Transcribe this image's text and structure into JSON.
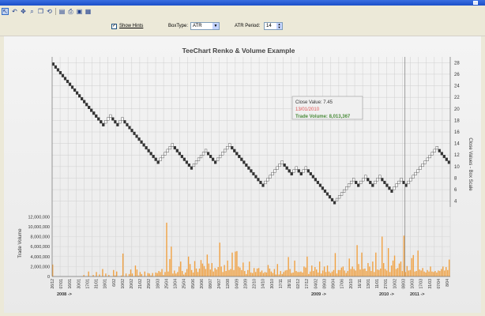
{
  "toolbar": {
    "icons": [
      "pointer-icon",
      "undo-icon",
      "move-icon",
      "zoom-icon",
      "copy-icon",
      "rotate-icon",
      "edit-icon",
      "print-icon",
      "export-icon",
      "save-icon"
    ]
  },
  "options": {
    "show_hints_label": "Show Hints",
    "show_hints_checked": true,
    "box_type_label": "BoxType:",
    "box_type_value": "ATR",
    "atr_period_label": "ATR Period:",
    "atr_period_value": "14"
  },
  "hint": {
    "close_value": "Close Value: 7.45",
    "date": "13/01/2010",
    "trade_volume": "Trade Volume: 8,013,367"
  },
  "chart_data": {
    "type": "renko_volume",
    "title": "TeeChart Renko & Volume Example",
    "renko": {
      "ylabel": "Close Values - Box Scale",
      "ylim": [
        3,
        29
      ],
      "yticks": [
        4,
        6,
        8,
        10,
        12,
        14,
        16,
        18,
        20,
        22,
        24,
        26,
        28
      ],
      "bricks": [
        [
          28,
          -1
        ],
        [
          27.5,
          -1
        ],
        [
          27,
          -1
        ],
        [
          26.5,
          -1
        ],
        [
          26,
          -1
        ],
        [
          25.5,
          -1
        ],
        [
          25,
          -1
        ],
        [
          24.5,
          -1
        ],
        [
          24,
          -1
        ],
        [
          23.5,
          -1
        ],
        [
          23,
          -1
        ],
        [
          22.5,
          -1
        ],
        [
          22,
          -1
        ],
        [
          21.5,
          -1
        ],
        [
          21,
          -1
        ],
        [
          20.5,
          -1
        ],
        [
          20,
          -1
        ],
        [
          19.5,
          -1
        ],
        [
          19,
          -1
        ],
        [
          18.5,
          -1
        ],
        [
          18,
          -1
        ],
        [
          17.5,
          -1
        ],
        [
          18,
          1
        ],
        [
          18.5,
          1
        ],
        [
          19,
          1
        ],
        [
          18.5,
          -1
        ],
        [
          18,
          -1
        ],
        [
          17.5,
          -1
        ],
        [
          18,
          1
        ],
        [
          18.5,
          1
        ],
        [
          18,
          -1
        ],
        [
          17.5,
          -1
        ],
        [
          17,
          -1
        ],
        [
          16.5,
          -1
        ],
        [
          16,
          -1
        ],
        [
          15.5,
          -1
        ],
        [
          15,
          -1
        ],
        [
          14.5,
          -1
        ],
        [
          14,
          -1
        ],
        [
          13.5,
          -1
        ],
        [
          13,
          -1
        ],
        [
          12.5,
          -1
        ],
        [
          12,
          -1
        ],
        [
          11.5,
          -1
        ],
        [
          11,
          -1
        ],
        [
          11.5,
          1
        ],
        [
          12,
          1
        ],
        [
          12.5,
          1
        ],
        [
          13,
          1
        ],
        [
          13.5,
          1
        ],
        [
          14,
          1
        ],
        [
          13.5,
          -1
        ],
        [
          13,
          -1
        ],
        [
          12.5,
          -1
        ],
        [
          12,
          -1
        ],
        [
          11.5,
          -1
        ],
        [
          11,
          -1
        ],
        [
          10.5,
          -1
        ],
        [
          10,
          -1
        ],
        [
          10.5,
          1
        ],
        [
          11,
          1
        ],
        [
          11.5,
          1
        ],
        [
          12,
          1
        ],
        [
          12.5,
          1
        ],
        [
          13,
          1
        ],
        [
          12.5,
          -1
        ],
        [
          12,
          -1
        ],
        [
          11.5,
          -1
        ],
        [
          11,
          -1
        ],
        [
          11.5,
          1
        ],
        [
          12,
          1
        ],
        [
          12.5,
          1
        ],
        [
          13,
          1
        ],
        [
          13.5,
          1
        ],
        [
          14,
          1
        ],
        [
          13.5,
          -1
        ],
        [
          13,
          -1
        ],
        [
          12.5,
          -1
        ],
        [
          12,
          -1
        ],
        [
          11.5,
          -1
        ],
        [
          11,
          -1
        ],
        [
          10.5,
          -1
        ],
        [
          10,
          -1
        ],
        [
          9.5,
          -1
        ],
        [
          9,
          -1
        ],
        [
          8.5,
          -1
        ],
        [
          8,
          -1
        ],
        [
          7.5,
          -1
        ],
        [
          7,
          -1
        ],
        [
          7.5,
          1
        ],
        [
          8,
          1
        ],
        [
          8.5,
          1
        ],
        [
          9,
          1
        ],
        [
          9.5,
          1
        ],
        [
          10,
          1
        ],
        [
          10.5,
          1
        ],
        [
          11,
          1
        ],
        [
          10.5,
          -1
        ],
        [
          10,
          -1
        ],
        [
          9.5,
          -1
        ],
        [
          9,
          -1
        ],
        [
          9.5,
          1
        ],
        [
          10,
          1
        ],
        [
          9.5,
          -1
        ],
        [
          9,
          -1
        ],
        [
          9.5,
          1
        ],
        [
          10,
          1
        ],
        [
          9.5,
          -1
        ],
        [
          9,
          -1
        ],
        [
          8.5,
          -1
        ],
        [
          8,
          -1
        ],
        [
          7.5,
          -1
        ],
        [
          7,
          -1
        ],
        [
          6.5,
          -1
        ],
        [
          6,
          -1
        ],
        [
          5.5,
          -1
        ],
        [
          5,
          -1
        ],
        [
          4.5,
          -1
        ],
        [
          4,
          -1
        ],
        [
          4.5,
          1
        ],
        [
          5,
          1
        ],
        [
          5.5,
          1
        ],
        [
          6,
          1
        ],
        [
          6.5,
          1
        ],
        [
          7,
          1
        ],
        [
          7.5,
          1
        ],
        [
          8,
          1
        ],
        [
          7.5,
          -1
        ],
        [
          7,
          -1
        ],
        [
          7.5,
          1
        ],
        [
          8,
          1
        ],
        [
          8.5,
          1
        ],
        [
          8,
          -1
        ],
        [
          7.5,
          -1
        ],
        [
          7,
          -1
        ],
        [
          7.5,
          1
        ],
        [
          8,
          1
        ],
        [
          8.5,
          1
        ],
        [
          8,
          -1
        ],
        [
          7.5,
          -1
        ],
        [
          7,
          -1
        ],
        [
          6.5,
          -1
        ],
        [
          6,
          -1
        ],
        [
          6.5,
          1
        ],
        [
          7,
          1
        ],
        [
          7.5,
          1
        ],
        [
          8,
          1
        ],
        [
          7.5,
          -1
        ],
        [
          7,
          -1
        ],
        [
          7.5,
          1
        ],
        [
          8,
          1
        ],
        [
          8.5,
          1
        ],
        [
          9,
          1
        ],
        [
          9.5,
          1
        ],
        [
          10,
          1
        ],
        [
          10.5,
          1
        ],
        [
          11,
          1
        ],
        [
          11.5,
          1
        ],
        [
          12,
          1
        ],
        [
          12.5,
          1
        ],
        [
          13,
          1
        ],
        [
          13.5,
          1
        ],
        [
          13,
          -1
        ],
        [
          12.5,
          -1
        ],
        [
          12,
          -1
        ],
        [
          11.5,
          -1
        ],
        [
          11,
          -1
        ]
      ]
    },
    "volume": {
      "ylabel": "Trade Volume",
      "ylim": [
        0,
        13000000
      ],
      "yticks": [
        "0",
        "2,000,000",
        "4,000,000",
        "6,000,000",
        "8,000,000",
        "10,000,000",
        "12,000,000"
      ],
      "values": [
        2400000,
        0,
        0,
        0,
        0,
        0,
        0,
        0,
        0,
        0,
        0,
        0,
        0,
        0,
        0,
        0,
        0,
        0,
        0,
        0,
        300000,
        0,
        0,
        1000000,
        0,
        0,
        300000,
        0,
        900000,
        0,
        400000,
        0,
        1500000,
        0,
        600000,
        0,
        300000,
        0,
        0,
        1300000,
        200000,
        1000000,
        0,
        0,
        200000,
        4600000,
        0,
        600000,
        0,
        500000,
        1400000,
        600000,
        0,
        2200000,
        1400000,
        200000,
        900000,
        500000,
        0,
        1000000,
        0,
        700000,
        600000,
        200000,
        700000,
        0,
        800000,
        700000,
        1100000,
        900000,
        1500000,
        300000,
        900000,
        10800000,
        1000000,
        3500000,
        6000000,
        600000,
        1200000,
        600000,
        900000,
        2000000,
        3000000,
        1100000,
        400000,
        800000,
        1500000,
        4000000,
        2500000,
        1300000,
        800000,
        3100000,
        1600000,
        900000,
        1600000,
        3300000,
        2600000,
        2100000,
        1500000,
        4400000,
        2600000,
        1400000,
        2700000,
        1000000,
        1700000,
        1400000,
        1900000,
        6800000,
        2000000,
        900000,
        2300000,
        1100000,
        3200000,
        1300000,
        1500000,
        4800000,
        1300000,
        5000000,
        5100000,
        2000000,
        1800000,
        1300000,
        2800000,
        1100000,
        500000,
        1300000,
        3000000,
        800000,
        700000,
        1700000,
        900000,
        1600000,
        1700000,
        900000,
        1200000,
        700000,
        900000,
        800000,
        2300000,
        1600000,
        1000000,
        700000,
        1500000,
        400000,
        2500000,
        400000,
        1100000,
        500000,
        900000,
        1200000,
        1300000,
        3900000,
        1500000,
        700000,
        800000,
        3200000,
        1100000,
        900000,
        900000,
        1000000,
        800000,
        2000000,
        1800000,
        4000000,
        500000,
        1000000,
        2200000,
        1100000,
        1900000,
        1400000,
        800000,
        3000000,
        600000,
        1200000,
        2000000,
        900000,
        2200000,
        1000000,
        700000,
        1000000,
        1300000,
        4700000,
        600000,
        1300000,
        1300000,
        1800000,
        2000000,
        1200000,
        700000,
        1100000,
        3600000,
        1500000,
        2000000,
        1500000,
        1200000,
        6300000,
        2500000,
        1400000,
        4800000,
        1500000,
        1600000,
        1100000,
        2700000,
        2000000,
        1100000,
        3000000,
        900000,
        4800000,
        1400000,
        1300000,
        1600000,
        8013367,
        2700000,
        1500000,
        1200000,
        5700000,
        900000,
        2200000,
        3200000,
        4200000,
        1500000,
        1700000,
        2600000,
        3000000,
        1100000,
        8200000,
        900000,
        2100000,
        1200000,
        1300000,
        3700000,
        4300000,
        1000000,
        1100000,
        5200000,
        1400000,
        1200000,
        1700000,
        1000000,
        800000,
        1300000,
        1000000,
        2000000,
        1000000,
        900000,
        1100000,
        800000,
        1200000,
        1100000,
        1500000,
        2000000,
        1200000,
        1900000,
        1300000,
        3400000
      ]
    },
    "x_tick_labels": [
      "26/12",
      "07/01",
      "16/01",
      "30/01",
      "17/01",
      "31/01",
      "18/01",
      "6/02",
      "10/02",
      "20/02",
      "21/02",
      "29/02",
      "18/03",
      "25/04",
      "13/04",
      "25/04",
      "05/06",
      "20/06",
      "08/07",
      "24/07",
      "12/08",
      "04/09",
      "23/09",
      "22/10",
      "14/10",
      "30/10",
      "17/11",
      "28/11",
      "02/12",
      "17/12",
      "04/02",
      "09/03",
      "09/04",
      "17/06",
      "20/10",
      "16/11",
      "13/01",
      "11/01",
      "27/01",
      "10/02",
      "08/03",
      "10/03",
      "17/03",
      "31/03",
      "07/04",
      "8/04"
    ],
    "year_labels": [
      "2008 ->",
      "2009 ->",
      "2010 ->",
      "2011 ->"
    ],
    "grid": true,
    "cursor_brick": 148
  }
}
